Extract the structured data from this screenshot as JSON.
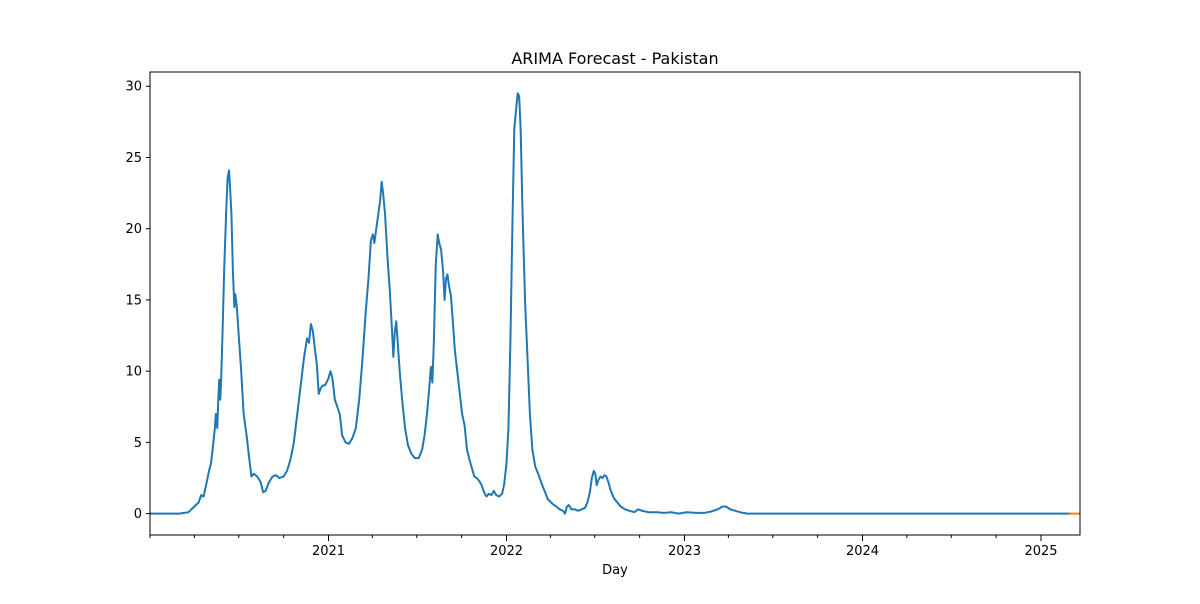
{
  "chart_data": {
    "type": "line",
    "title": "ARIMA Forecast - Pakistan",
    "xlabel": "Day",
    "ylabel": "",
    "x_scale": "date",
    "xlim": [
      "2020-01-01",
      "2025-03-22"
    ],
    "ylim": [
      -1.5,
      31.0
    ],
    "y_ticks": [
      0,
      5,
      10,
      15,
      20,
      25,
      30
    ],
    "y_tick_labels": [
      "0",
      "5",
      "10",
      "15",
      "20",
      "25",
      "30"
    ],
    "x_ticks": [
      "2021-01-01",
      "2022-01-01",
      "2023-01-01",
      "2024-01-01",
      "2025-01-01"
    ],
    "x_tick_labels": [
      "2021",
      "2022",
      "2023",
      "2024",
      "2025"
    ],
    "x_minor_ticks": [
      "2020-01-01",
      "2020-04-01",
      "2020-07-01",
      "2020-10-01",
      "2021-04-01",
      "2021-07-01",
      "2021-10-01",
      "2022-04-01",
      "2022-07-01",
      "2022-10-01",
      "2023-04-01",
      "2023-07-01",
      "2023-10-01",
      "2024-04-01",
      "2024-07-01",
      "2024-10-01"
    ],
    "grid": false,
    "legend": "none",
    "series": [
      {
        "color": "#1f77b4",
        "points": [
          [
            "2020-01-01",
            0
          ],
          [
            "2020-03-01",
            0
          ],
          [
            "2020-03-20",
            0.1
          ],
          [
            "2020-04-01",
            0.5
          ],
          [
            "2020-04-10",
            0.8
          ],
          [
            "2020-04-15",
            1.3
          ],
          [
            "2020-04-20",
            1.2
          ],
          [
            "2020-04-25",
            2.0
          ],
          [
            "2020-05-01",
            3.0
          ],
          [
            "2020-05-05",
            3.5
          ],
          [
            "2020-05-10",
            5.0
          ],
          [
            "2020-05-13",
            6.0
          ],
          [
            "2020-05-15",
            7.0
          ],
          [
            "2020-05-18",
            6.0
          ],
          [
            "2020-05-20",
            8.0
          ],
          [
            "2020-05-22",
            9.4
          ],
          [
            "2020-05-24",
            8.0
          ],
          [
            "2020-05-26",
            9.5
          ],
          [
            "2020-05-29",
            13.0
          ],
          [
            "2020-06-01",
            17.0
          ],
          [
            "2020-06-05",
            21.0
          ],
          [
            "2020-06-08",
            23.5
          ],
          [
            "2020-06-11",
            24.1
          ],
          [
            "2020-06-13",
            23.0
          ],
          [
            "2020-06-16",
            21.0
          ],
          [
            "2020-06-19",
            17.0
          ],
          [
            "2020-06-22",
            14.5
          ],
          [
            "2020-06-24",
            15.4
          ],
          [
            "2020-06-27",
            14.5
          ],
          [
            "2020-07-01",
            12.5
          ],
          [
            "2020-07-06",
            10.0
          ],
          [
            "2020-07-11",
            7.0
          ],
          [
            "2020-07-17",
            5.5
          ],
          [
            "2020-07-22",
            4.0
          ],
          [
            "2020-07-27",
            2.6
          ],
          [
            "2020-08-01",
            2.8
          ],
          [
            "2020-08-08",
            2.6
          ],
          [
            "2020-08-15",
            2.2
          ],
          [
            "2020-08-20",
            1.5
          ],
          [
            "2020-08-25",
            1.6
          ],
          [
            "2020-09-01",
            2.2
          ],
          [
            "2020-09-08",
            2.6
          ],
          [
            "2020-09-15",
            2.7
          ],
          [
            "2020-09-22",
            2.5
          ],
          [
            "2020-10-01",
            2.6
          ],
          [
            "2020-10-08",
            3.0
          ],
          [
            "2020-10-15",
            3.8
          ],
          [
            "2020-10-22",
            5.0
          ],
          [
            "2020-10-29",
            7.0
          ],
          [
            "2020-11-05",
            9.0
          ],
          [
            "2020-11-12",
            11.0
          ],
          [
            "2020-11-18",
            12.3
          ],
          [
            "2020-11-22",
            12.0
          ],
          [
            "2020-11-26",
            13.3
          ],
          [
            "2020-11-30",
            12.8
          ],
          [
            "2020-12-05",
            11.3
          ],
          [
            "2020-12-08",
            10.5
          ],
          [
            "2020-12-12",
            8.4
          ],
          [
            "2020-12-16",
            8.8
          ],
          [
            "2020-12-20",
            9.0
          ],
          [
            "2020-12-25",
            9.0
          ],
          [
            "2021-01-01",
            9.5
          ],
          [
            "2021-01-05",
            10.0
          ],
          [
            "2021-01-09",
            9.5
          ],
          [
            "2021-01-14",
            8.0
          ],
          [
            "2021-01-19",
            7.5
          ],
          [
            "2021-01-24",
            7.0
          ],
          [
            "2021-01-29",
            5.5
          ],
          [
            "2021-02-05",
            5.0
          ],
          [
            "2021-02-12",
            4.9
          ],
          [
            "2021-02-19",
            5.3
          ],
          [
            "2021-02-26",
            6.0
          ],
          [
            "2021-03-05",
            8.0
          ],
          [
            "2021-03-12",
            11.0
          ],
          [
            "2021-03-18",
            14.0
          ],
          [
            "2021-03-24",
            16.5
          ],
          [
            "2021-03-29",
            19.2
          ],
          [
            "2021-04-02",
            19.6
          ],
          [
            "2021-04-05",
            19.0
          ],
          [
            "2021-04-09",
            20.0
          ],
          [
            "2021-04-13",
            21.0
          ],
          [
            "2021-04-17",
            22.0
          ],
          [
            "2021-04-20",
            23.3
          ],
          [
            "2021-04-23",
            22.5
          ],
          [
            "2021-04-27",
            21.0
          ],
          [
            "2021-05-02",
            18.0
          ],
          [
            "2021-05-07",
            15.5
          ],
          [
            "2021-05-11",
            13.0
          ],
          [
            "2021-05-14",
            11.0
          ],
          [
            "2021-05-17",
            12.8
          ],
          [
            "2021-05-20",
            13.5
          ],
          [
            "2021-05-23",
            12.0
          ],
          [
            "2021-05-27",
            10.0
          ],
          [
            "2021-06-01",
            8.0
          ],
          [
            "2021-06-07",
            6.0
          ],
          [
            "2021-06-13",
            4.8
          ],
          [
            "2021-06-20",
            4.2
          ],
          [
            "2021-06-27",
            3.9
          ],
          [
            "2021-07-05",
            3.9
          ],
          [
            "2021-07-12",
            4.5
          ],
          [
            "2021-07-17",
            5.5
          ],
          [
            "2021-07-22",
            7.0
          ],
          [
            "2021-07-27",
            9.0
          ],
          [
            "2021-07-30",
            10.3
          ],
          [
            "2021-08-02",
            9.2
          ],
          [
            "2021-08-05",
            12.0
          ],
          [
            "2021-08-09",
            17.5
          ],
          [
            "2021-08-13",
            19.6
          ],
          [
            "2021-08-16",
            19.0
          ],
          [
            "2021-08-20",
            18.5
          ],
          [
            "2021-08-24",
            17.0
          ],
          [
            "2021-08-27",
            15.0
          ],
          [
            "2021-08-30",
            16.5
          ],
          [
            "2021-09-02",
            16.8
          ],
          [
            "2021-09-05",
            16.0
          ],
          [
            "2021-09-09",
            15.3
          ],
          [
            "2021-09-13",
            13.5
          ],
          [
            "2021-09-17",
            11.5
          ],
          [
            "2021-09-22",
            10.0
          ],
          [
            "2021-09-27",
            8.5
          ],
          [
            "2021-10-02",
            7.0
          ],
          [
            "2021-10-07",
            6.2
          ],
          [
            "2021-10-12",
            4.5
          ],
          [
            "2021-10-17",
            3.8
          ],
          [
            "2021-10-22",
            3.2
          ],
          [
            "2021-10-27",
            2.6
          ],
          [
            "2021-11-01",
            2.5
          ],
          [
            "2021-11-06",
            2.3
          ],
          [
            "2021-11-11",
            2.0
          ],
          [
            "2021-11-16",
            1.5
          ],
          [
            "2021-11-21",
            1.2
          ],
          [
            "2021-11-26",
            1.4
          ],
          [
            "2021-12-01",
            1.3
          ],
          [
            "2021-12-06",
            1.6
          ],
          [
            "2021-12-11",
            1.3
          ],
          [
            "2021-12-17",
            1.2
          ],
          [
            "2021-12-23",
            1.4
          ],
          [
            "2021-12-27",
            2.0
          ],
          [
            "2022-01-01",
            3.5
          ],
          [
            "2022-01-05",
            6.0
          ],
          [
            "2022-01-09",
            12.0
          ],
          [
            "2022-01-13",
            20.0
          ],
          [
            "2022-01-17",
            27.0
          ],
          [
            "2022-01-21",
            28.5
          ],
          [
            "2022-01-24",
            29.5
          ],
          [
            "2022-01-27",
            29.3
          ],
          [
            "2022-01-30",
            27.0
          ],
          [
            "2022-02-03",
            21.0
          ],
          [
            "2022-02-08",
            15.0
          ],
          [
            "2022-02-13",
            11.0
          ],
          [
            "2022-02-18",
            7.0
          ],
          [
            "2022-02-23",
            4.5
          ],
          [
            "2022-03-01",
            3.3
          ],
          [
            "2022-03-07",
            2.8
          ],
          [
            "2022-03-13",
            2.2
          ],
          [
            "2022-03-20",
            1.6
          ],
          [
            "2022-03-27",
            1.0
          ],
          [
            "2022-04-05",
            0.7
          ],
          [
            "2022-04-13",
            0.5
          ],
          [
            "2022-04-20",
            0.3
          ],
          [
            "2022-04-27",
            0.2
          ],
          [
            "2022-05-01",
            0
          ],
          [
            "2022-05-05",
            0.5
          ],
          [
            "2022-05-09",
            0.6
          ],
          [
            "2022-05-14",
            0.3
          ],
          [
            "2022-05-21",
            0.3
          ],
          [
            "2022-05-28",
            0.2
          ],
          [
            "2022-06-04",
            0.3
          ],
          [
            "2022-06-11",
            0.4
          ],
          [
            "2022-06-16",
            0.8
          ],
          [
            "2022-06-21",
            1.5
          ],
          [
            "2022-06-25",
            2.5
          ],
          [
            "2022-06-29",
            3.0
          ],
          [
            "2022-07-02",
            2.8
          ],
          [
            "2022-07-05",
            2.0
          ],
          [
            "2022-07-09",
            2.4
          ],
          [
            "2022-07-13",
            2.6
          ],
          [
            "2022-07-17",
            2.5
          ],
          [
            "2022-07-21",
            2.7
          ],
          [
            "2022-07-25",
            2.6
          ],
          [
            "2022-07-29",
            2.2
          ],
          [
            "2022-08-03",
            1.6
          ],
          [
            "2022-08-09",
            1.1
          ],
          [
            "2022-08-16",
            0.8
          ],
          [
            "2022-08-23",
            0.5
          ],
          [
            "2022-09-01",
            0.3
          ],
          [
            "2022-09-10",
            0.2
          ],
          [
            "2022-09-20",
            0.1
          ],
          [
            "2022-09-28",
            0.3
          ],
          [
            "2022-10-06",
            0.2
          ],
          [
            "2022-10-20",
            0.1
          ],
          [
            "2022-11-05",
            0.1
          ],
          [
            "2022-11-20",
            0.05
          ],
          [
            "2022-12-05",
            0.1
          ],
          [
            "2022-12-20",
            0
          ],
          [
            "2023-01-05",
            0.1
          ],
          [
            "2023-01-25",
            0.05
          ],
          [
            "2023-02-10",
            0.05
          ],
          [
            "2023-02-25",
            0.15
          ],
          [
            "2023-03-10",
            0.3
          ],
          [
            "2023-03-20",
            0.5
          ],
          [
            "2023-03-27",
            0.5
          ],
          [
            "2023-04-05",
            0.3
          ],
          [
            "2023-04-15",
            0.2
          ],
          [
            "2023-04-25",
            0.1
          ],
          [
            "2023-05-10",
            0
          ],
          [
            "2023-06-01",
            0
          ],
          [
            "2024-01-01",
            0
          ],
          [
            "2025-01-01",
            0
          ],
          [
            "2025-03-01",
            0
          ]
        ]
      },
      {
        "color": "#ff7f0e",
        "points": [
          [
            "2025-03-01",
            0
          ],
          [
            "2025-03-22",
            0
          ]
        ]
      }
    ]
  }
}
